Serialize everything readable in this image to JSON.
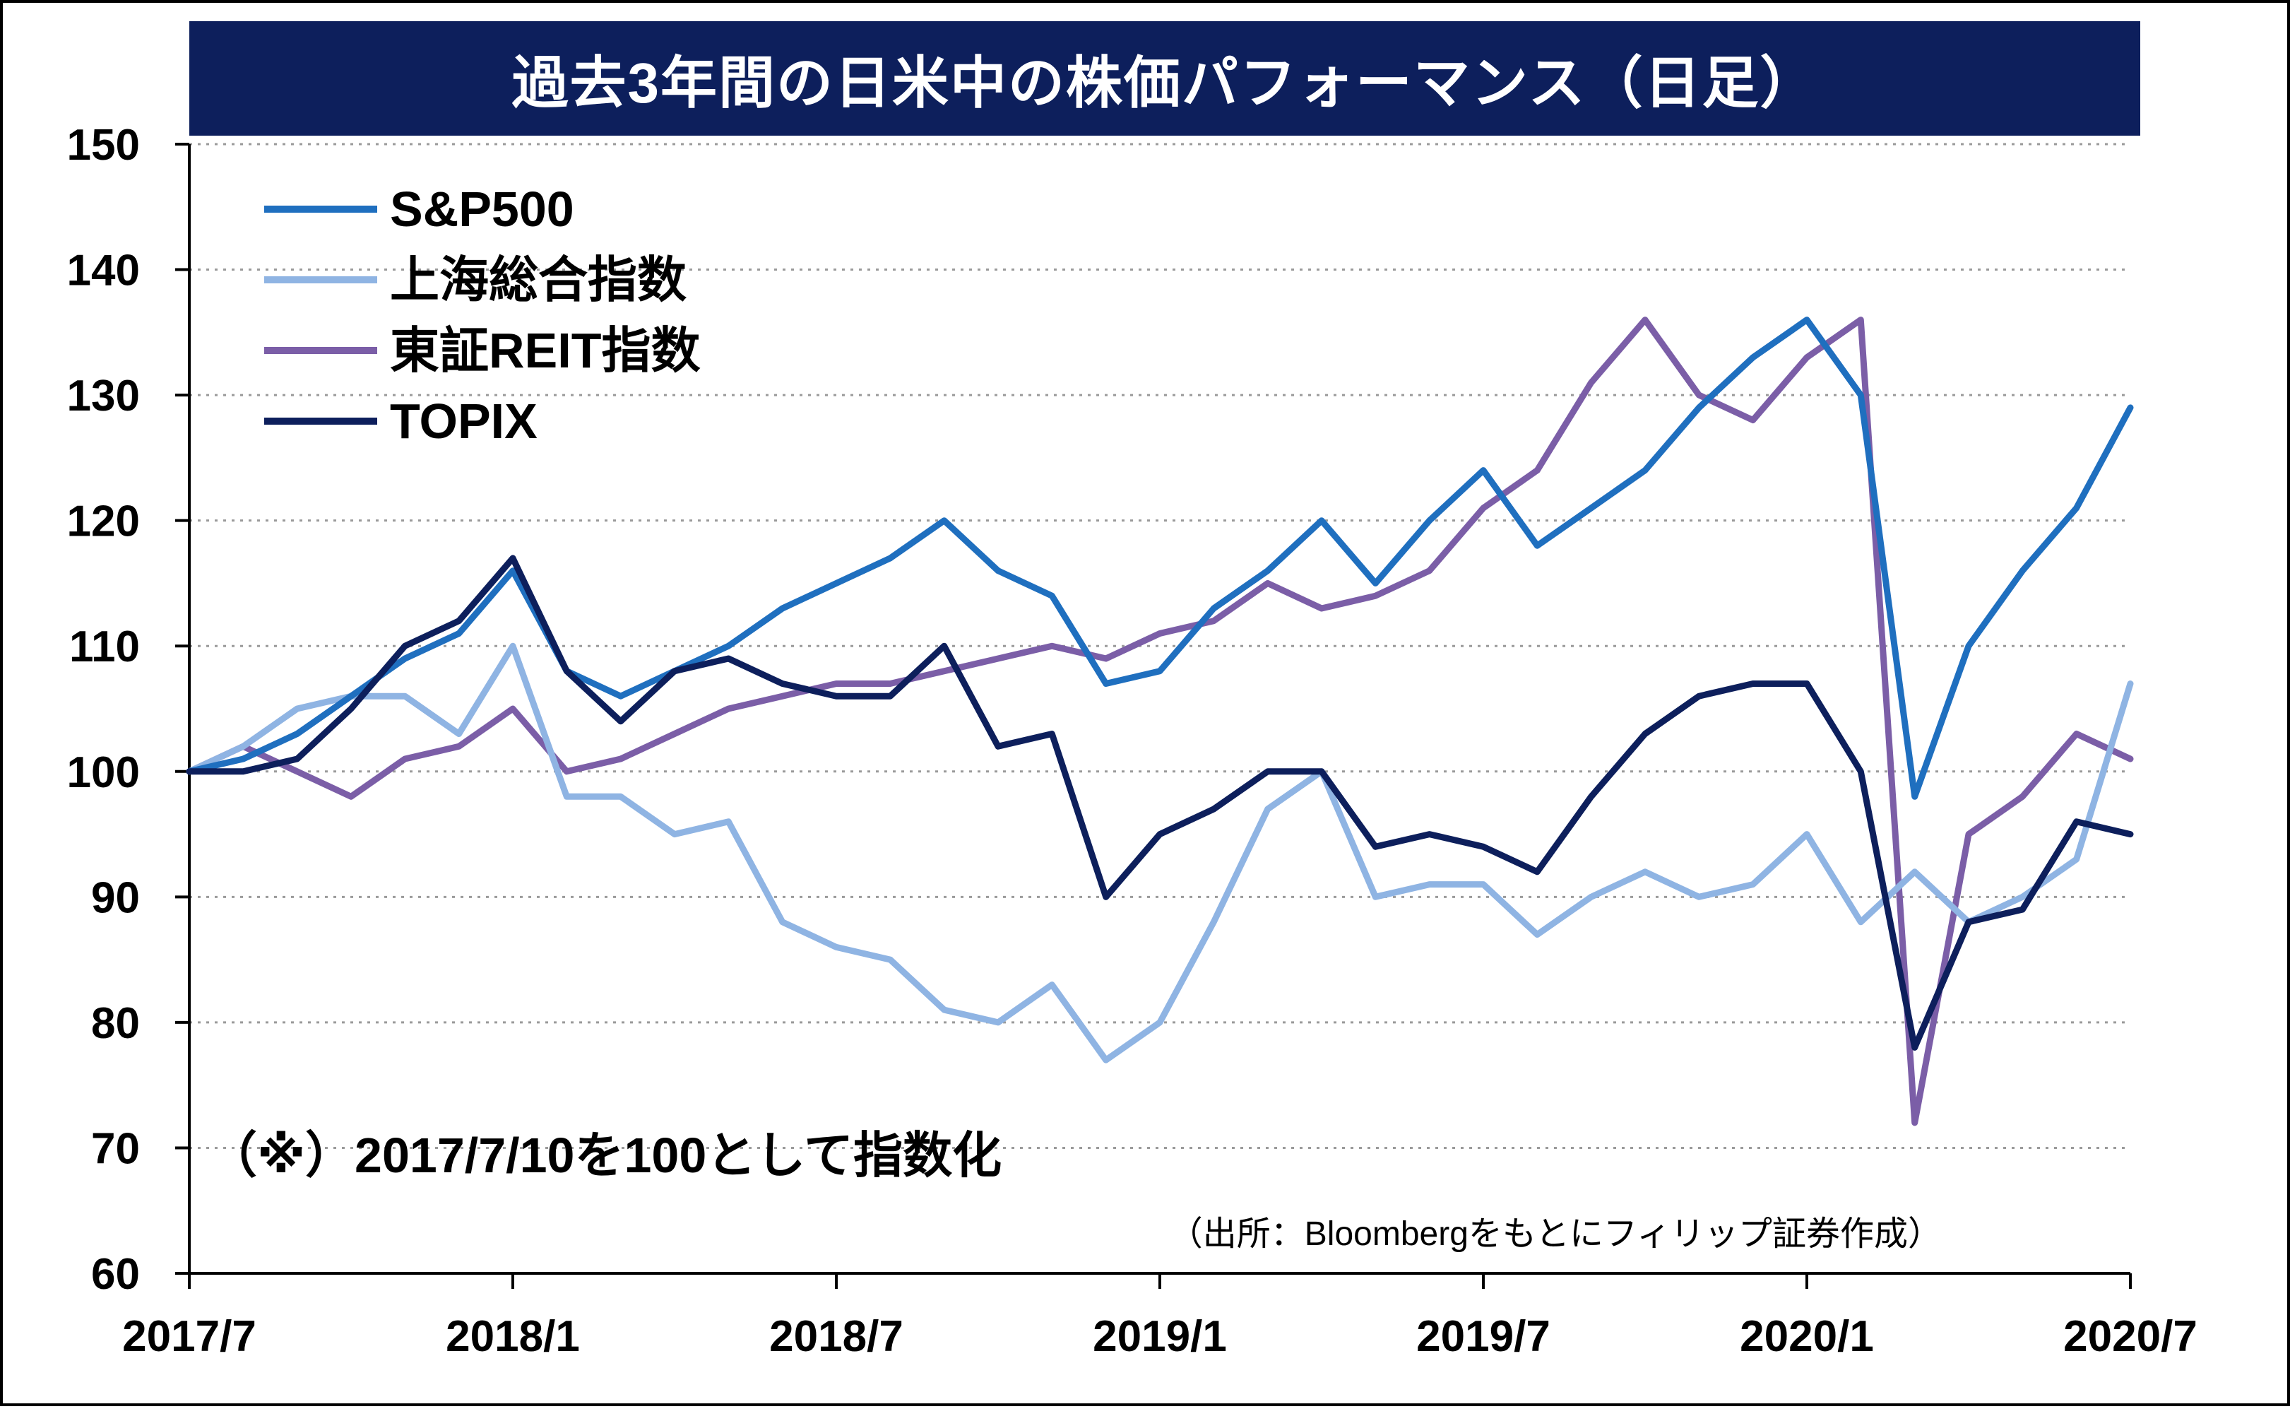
{
  "chart_data": {
    "type": "line",
    "title": "過去3年間の日米中の株価パフォーマンス（日足）",
    "xlabel": "",
    "ylabel": "",
    "ylim": [
      60,
      150
    ],
    "y_ticks": [
      "150",
      "140",
      "130",
      "120",
      "110",
      "100",
      "90",
      "80",
      "70",
      "60"
    ],
    "x_tick_labels": [
      "2017/7",
      "2018/1",
      "2018/7",
      "2019/1",
      "2019/7",
      "2020/1",
      "2020/7"
    ],
    "x_domain": [
      "2017-07",
      "2020-07"
    ],
    "grid": "horizontal dotted",
    "legend_position": "top-left",
    "x": [
      "2017-07",
      "2017-08",
      "2017-09",
      "2017-10",
      "2017-11",
      "2017-12",
      "2018-01",
      "2018-02",
      "2018-03",
      "2018-04",
      "2018-05",
      "2018-06",
      "2018-07",
      "2018-08",
      "2018-09",
      "2018-10",
      "2018-11",
      "2018-12",
      "2019-01",
      "2019-02",
      "2019-03",
      "2019-04",
      "2019-05",
      "2019-06",
      "2019-07",
      "2019-08",
      "2019-09",
      "2019-10",
      "2019-11",
      "2019-12",
      "2020-01",
      "2020-02",
      "2020-03",
      "2020-04",
      "2020-05",
      "2020-06",
      "2020-07"
    ],
    "series": [
      {
        "name": "S&P500",
        "color": "#1f6fbf",
        "values": [
          100,
          101,
          103,
          106,
          109,
          111,
          116,
          108,
          106,
          108,
          110,
          113,
          115,
          117,
          120,
          116,
          114,
          107,
          108,
          113,
          116,
          120,
          115,
          120,
          124,
          118,
          121,
          124,
          129,
          133,
          136,
          130,
          98,
          110,
          116,
          121,
          129
        ]
      },
      {
        "name": "上海総合指数",
        "color": "#8fb4e3",
        "values": [
          100,
          102,
          105,
          106,
          106,
          103,
          110,
          98,
          98,
          95,
          96,
          88,
          86,
          85,
          81,
          80,
          83,
          77,
          80,
          88,
          97,
          100,
          90,
          91,
          91,
          87,
          90,
          92,
          90,
          91,
          95,
          88,
          92,
          88,
          90,
          93,
          107
        ]
      },
      {
        "name": "東証REIT指数",
        "color": "#7b5ea7",
        "values": [
          100,
          102,
          100,
          98,
          101,
          102,
          105,
          100,
          101,
          103,
          105,
          106,
          107,
          107,
          108,
          109,
          110,
          109,
          111,
          112,
          115,
          113,
          114,
          116,
          121,
          124,
          131,
          136,
          130,
          128,
          133,
          136,
          72,
          95,
          98,
          103,
          101
        ]
      },
      {
        "name": "TOPIX",
        "color": "#0d1f5c",
        "values": [
          100,
          100,
          101,
          105,
          110,
          112,
          117,
          108,
          104,
          108,
          109,
          107,
          106,
          106,
          110,
          102,
          103,
          90,
          95,
          97,
          100,
          100,
          94,
          95,
          94,
          92,
          98,
          103,
          106,
          107,
          107,
          100,
          78,
          88,
          89,
          96,
          95
        ]
      }
    ]
  },
  "note": "（※）2017/7/10を100として指数化",
  "source": "（出所：Bloombergをもとにフィリップ証券作成）"
}
